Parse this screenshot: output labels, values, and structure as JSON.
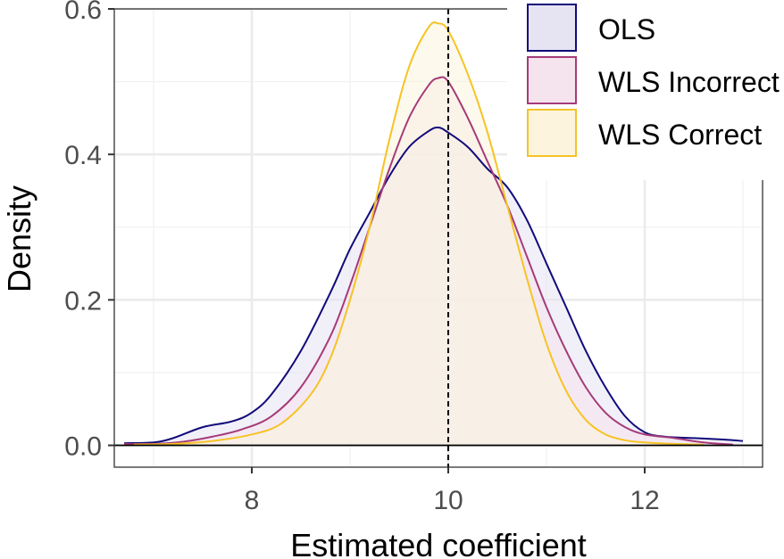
{
  "chart_data": {
    "type": "area",
    "title": "",
    "xlabel": "Estimated coefficient",
    "ylabel": "Density",
    "xlim": [
      6.6,
      13.2
    ],
    "ylim": [
      -0.03,
      0.6
    ],
    "x_ticks": [
      8,
      10,
      12
    ],
    "y_ticks": [
      0.0,
      0.2,
      0.4,
      0.6
    ],
    "x_tick_labels": [
      "8",
      "10",
      "12"
    ],
    "y_tick_labels": [
      "0.0",
      "0.2",
      "0.4",
      "0.6"
    ],
    "reference_line": {
      "x": 10,
      "style": "dashed",
      "color": "#000000"
    },
    "grid": true,
    "legend_position": "top-right",
    "series": [
      {
        "name": "OLS",
        "line_color": "#120A7A",
        "fill_color": "#E6E4F2",
        "x": [
          6.7,
          7.0,
          7.2,
          7.5,
          7.8,
          8.0,
          8.2,
          8.5,
          8.8,
          9.0,
          9.2,
          9.4,
          9.6,
          9.8,
          9.9,
          10.0,
          10.2,
          10.4,
          10.6,
          10.8,
          11.0,
          11.2,
          11.4,
          11.6,
          11.8,
          12.0,
          12.2,
          12.5,
          12.8,
          13.0
        ],
        "y": [
          0.003,
          0.004,
          0.01,
          0.025,
          0.033,
          0.045,
          0.07,
          0.13,
          0.21,
          0.27,
          0.32,
          0.37,
          0.41,
          0.432,
          0.437,
          0.43,
          0.41,
          0.38,
          0.355,
          0.31,
          0.25,
          0.19,
          0.13,
          0.08,
          0.04,
          0.018,
          0.012,
          0.01,
          0.008,
          0.006
        ]
      },
      {
        "name": "WLS Incorrect",
        "line_color": "#A53B78",
        "fill_color": "#F5E4EE",
        "x": [
          6.7,
          7.0,
          7.3,
          7.6,
          7.9,
          8.2,
          8.5,
          8.8,
          9.0,
          9.2,
          9.4,
          9.6,
          9.8,
          9.9,
          10.0,
          10.2,
          10.4,
          10.6,
          10.8,
          11.0,
          11.2,
          11.4,
          11.6,
          11.8,
          12.0,
          12.3,
          12.6,
          12.9
        ],
        "y": [
          0.002,
          0.002,
          0.005,
          0.012,
          0.022,
          0.04,
          0.08,
          0.15,
          0.22,
          0.3,
          0.38,
          0.45,
          0.495,
          0.505,
          0.5,
          0.45,
          0.39,
          0.33,
          0.26,
          0.19,
          0.13,
          0.08,
          0.045,
          0.025,
          0.015,
          0.01,
          0.004,
          0.001
        ]
      },
      {
        "name": "WLS Correct",
        "line_color": "#F6C325",
        "fill_color": "#FCF4DD",
        "x": [
          6.8,
          7.2,
          7.6,
          8.0,
          8.3,
          8.6,
          8.8,
          9.0,
          9.2,
          9.4,
          9.6,
          9.8,
          9.9,
          10.0,
          10.2,
          10.4,
          10.6,
          10.8,
          11.0,
          11.2,
          11.4,
          11.6,
          11.8,
          12.0,
          12.3,
          12.6
        ],
        "y": [
          0.001,
          0.002,
          0.006,
          0.015,
          0.03,
          0.07,
          0.12,
          0.2,
          0.3,
          0.42,
          0.52,
          0.575,
          0.58,
          0.57,
          0.51,
          0.43,
          0.33,
          0.23,
          0.14,
          0.075,
          0.035,
          0.015,
          0.007,
          0.004,
          0.002,
          0.001
        ]
      }
    ]
  }
}
